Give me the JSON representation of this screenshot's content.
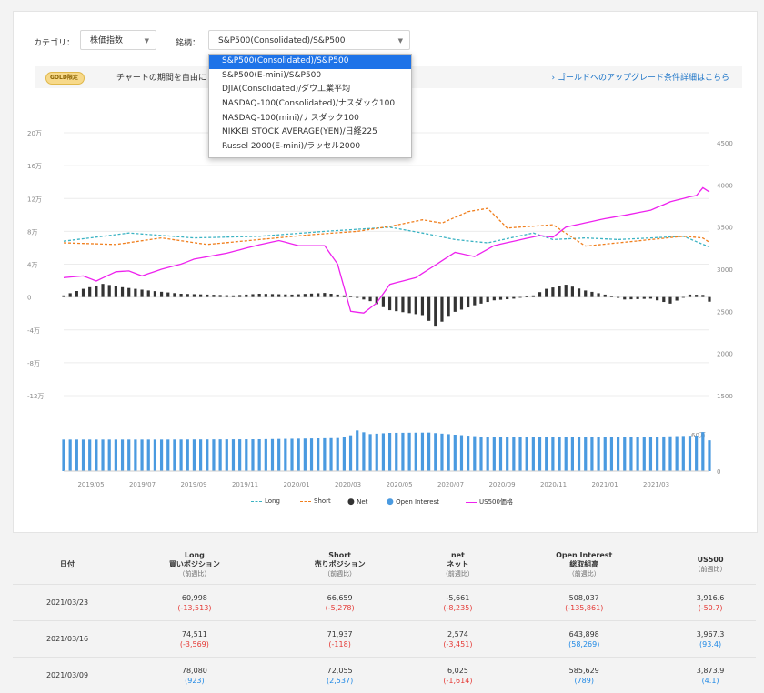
{
  "filters": {
    "category_label": "カテゴリ：",
    "category_value": "株価指数",
    "symbol_label": "銘柄：",
    "symbol_value": "S&P500(Consolidated)/S&P500"
  },
  "dropdown_options": [
    "S&P500(Consolidated)/S&P500",
    "S&P500(E-mini)/S&P500",
    "DJIA(Consolidated)/ダウ工業平均",
    "NASDAQ-100(Consolidated)/ナスダック100",
    "NASDAQ-100(mini)/ナスダック100",
    "NIKKEI STOCK AVERAGE(YEN)/日経225",
    "Russel 2000(E-mini)/ラッセル2000"
  ],
  "banner": {
    "badge": "GOLD限定",
    "text": "チャートの期間を自由に",
    "link": "› ゴールドへのアップグレード条件詳細はこちら"
  },
  "colors": {
    "long": "#3bb3c3",
    "short": "#f07f1e",
    "net": "#333333",
    "oi": "#4a9ae0",
    "price": "#ee22ee"
  },
  "chart_data": {
    "type": "line",
    "left_axis_ticks": [
      "20万",
      "16万",
      "12万",
      "8万",
      "4万",
      "0",
      "-4万",
      "-8万",
      "-12万"
    ],
    "left_ylim": [
      -120000,
      200000
    ],
    "right_axis_ticks": [
      "4500",
      "4000",
      "3500",
      "3000",
      "2500",
      "2000",
      "1500"
    ],
    "right_ylim": [
      1500,
      4500
    ],
    "oi_axis_ticks": [
      "60万",
      "0"
    ],
    "x_tick_labels": [
      "2019/05",
      "2019/07",
      "2019/09",
      "2019/11",
      "2020/01",
      "2020/03",
      "2020/05",
      "2020/07",
      "2020/09",
      "2020/11",
      "2021/01",
      "2021/03"
    ],
    "weeks": 100,
    "series": [
      {
        "name": "Long",
        "key": "long",
        "anchors": [
          [
            0,
            68000
          ],
          [
            10,
            78000
          ],
          [
            20,
            72000
          ],
          [
            30,
            74000
          ],
          [
            40,
            80000
          ],
          [
            50,
            85000
          ],
          [
            55,
            78000
          ],
          [
            60,
            70000
          ],
          [
            65,
            66000
          ],
          [
            72,
            78000
          ],
          [
            75,
            70000
          ],
          [
            80,
            72000
          ],
          [
            85,
            70000
          ],
          [
            90,
            72000
          ],
          [
            95,
            74000
          ],
          [
            99,
            60998
          ]
        ]
      },
      {
        "name": "Short",
        "key": "short",
        "anchors": [
          [
            0,
            66000
          ],
          [
            8,
            64000
          ],
          [
            15,
            72000
          ],
          [
            22,
            64000
          ],
          [
            30,
            70000
          ],
          [
            38,
            76000
          ],
          [
            45,
            80000
          ],
          [
            50,
            86000
          ],
          [
            55,
            94000
          ],
          [
            58,
            90000
          ],
          [
            62,
            104000
          ],
          [
            65,
            108000
          ],
          [
            68,
            84000
          ],
          [
            75,
            88000
          ],
          [
            80,
            62000
          ],
          [
            85,
            66000
          ],
          [
            90,
            70000
          ],
          [
            95,
            74000
          ],
          [
            98,
            71937
          ],
          [
            99,
            66659
          ]
        ]
      },
      {
        "name": "Net",
        "key": "net",
        "anchors": [
          [
            0,
            2000
          ],
          [
            3,
            10000
          ],
          [
            6,
            16000
          ],
          [
            9,
            12000
          ],
          [
            13,
            8000
          ],
          [
            18,
            4000
          ],
          [
            22,
            3000
          ],
          [
            26,
            2000
          ],
          [
            30,
            4000
          ],
          [
            35,
            3000
          ],
          [
            40,
            5000
          ],
          [
            44,
            1000
          ],
          [
            47,
            -5000
          ],
          [
            50,
            -16000
          ],
          [
            55,
            -22000
          ],
          [
            57,
            -36000
          ],
          [
            60,
            -18000
          ],
          [
            63,
            -10000
          ],
          [
            66,
            -4000
          ],
          [
            69,
            -2000
          ],
          [
            72,
            2000
          ],
          [
            74,
            10000
          ],
          [
            77,
            15000
          ],
          [
            80,
            8000
          ],
          [
            83,
            3000
          ],
          [
            86,
            -3000
          ],
          [
            90,
            -2000
          ],
          [
            93,
            -8000
          ],
          [
            96,
            3000
          ],
          [
            98,
            2574
          ],
          [
            99,
            -5661
          ]
        ]
      },
      {
        "name": "Open Interest",
        "key": "oi",
        "anchors": [
          [
            0,
            520000
          ],
          [
            15,
            520000
          ],
          [
            30,
            525000
          ],
          [
            42,
            545000
          ],
          [
            44,
            590000
          ],
          [
            45,
            670000
          ],
          [
            47,
            610000
          ],
          [
            50,
            630000
          ],
          [
            56,
            635000
          ],
          [
            60,
            600000
          ],
          [
            65,
            560000
          ],
          [
            70,
            565000
          ],
          [
            80,
            560000
          ],
          [
            90,
            565000
          ],
          [
            97,
            585629
          ],
          [
            98,
            643898
          ],
          [
            99,
            508037
          ]
        ]
      },
      {
        "name": "US500価格",
        "key": "price",
        "anchors": [
          [
            0,
            2900
          ],
          [
            3,
            2920
          ],
          [
            5,
            2860
          ],
          [
            8,
            2970
          ],
          [
            10,
            2980
          ],
          [
            12,
            2920
          ],
          [
            15,
            3000
          ],
          [
            18,
            3060
          ],
          [
            20,
            3120
          ],
          [
            25,
            3190
          ],
          [
            30,
            3290
          ],
          [
            33,
            3340
          ],
          [
            36,
            3280
          ],
          [
            40,
            3280
          ],
          [
            42,
            3060
          ],
          [
            44,
            2500
          ],
          [
            46,
            2480
          ],
          [
            48,
            2600
          ],
          [
            50,
            2820
          ],
          [
            54,
            2900
          ],
          [
            57,
            3050
          ],
          [
            60,
            3200
          ],
          [
            63,
            3150
          ],
          [
            66,
            3280
          ],
          [
            70,
            3350
          ],
          [
            73,
            3400
          ],
          [
            75,
            3380
          ],
          [
            77,
            3500
          ],
          [
            80,
            3550
          ],
          [
            83,
            3600
          ],
          [
            86,
            3640
          ],
          [
            90,
            3700
          ],
          [
            93,
            3800
          ],
          [
            96,
            3860
          ],
          [
            97,
            3873.9
          ],
          [
            98,
            3967.3
          ],
          [
            99,
            3916.6
          ]
        ]
      }
    ]
  },
  "legend": [
    "Long",
    "Short",
    "Net",
    "Open Interest",
    "US500価格"
  ],
  "table": {
    "headers": [
      {
        "l1": "日付",
        "l2": "",
        "l3": ""
      },
      {
        "l1": "Long",
        "l2": "買いポジション",
        "l3": "（前週比）"
      },
      {
        "l1": "Short",
        "l2": "売りポジション",
        "l3": "（前週比）"
      },
      {
        "l1": "net",
        "l2": "ネット",
        "l3": "（前週比）"
      },
      {
        "l1": "Open Interest",
        "l2": "総取組高",
        "l3": "（前週比）"
      },
      {
        "l1": "US500",
        "l2": "",
        "l3": "（前週比）"
      }
    ],
    "rows": [
      {
        "date": "2021/03/23",
        "long": "60,998",
        "long_chg": "(-13,513)",
        "short": "66,659",
        "short_chg": "(-5,278)",
        "net": "-5,661",
        "net_chg": "(-8,235)",
        "oi": "508,037",
        "oi_chg": "(-135,861)",
        "us500": "3,916.6",
        "us500_chg": "(-50.7)"
      },
      {
        "date": "2021/03/16",
        "long": "74,511",
        "long_chg": "(-3,569)",
        "short": "71,937",
        "short_chg": "(-118)",
        "net": "2,574",
        "net_chg": "(-3,451)",
        "oi": "643,898",
        "oi_chg": "(58,269)",
        "us500": "3,967.3",
        "us500_chg": "(93.4)"
      },
      {
        "date": "2021/03/09",
        "long": "78,080",
        "long_chg": "(923)",
        "short": "72,055",
        "short_chg": "(2,537)",
        "net": "6,025",
        "net_chg": "(-1,614)",
        "oi": "585,629",
        "oi_chg": "(789)",
        "us500": "3,873.9",
        "us500_chg": "(4.1)"
      }
    ]
  }
}
